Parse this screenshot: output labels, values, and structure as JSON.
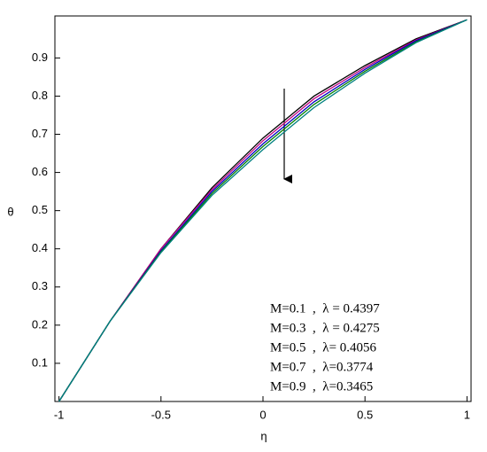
{
  "chart_data": {
    "type": "line",
    "xlabel": "η",
    "ylabel": "θ",
    "x": [
      -1,
      -0.75,
      -0.5,
      -0.25,
      0,
      0.25,
      0.5,
      0.75,
      1
    ],
    "series": [
      {
        "name": "M=0.1  ,  λ = 0.4397",
        "color": "#000000",
        "values": [
          0,
          0.21,
          0.4,
          0.56,
          0.69,
          0.8,
          0.88,
          0.95,
          1
        ]
      },
      {
        "name": "M=0.3  ,  λ = 0.4275",
        "color": "#c00080",
        "values": [
          0,
          0.21,
          0.4,
          0.555,
          0.683,
          0.793,
          0.875,
          0.947,
          1
        ]
      },
      {
        "name": "M=0.5  ,  λ= 0.4056",
        "color": "#0000c0",
        "values": [
          0,
          0.21,
          0.395,
          0.55,
          0.675,
          0.785,
          0.87,
          0.945,
          1
        ]
      },
      {
        "name": "M=0.7  ,  λ=0.3774",
        "color": "#008000",
        "values": [
          0,
          0.21,
          0.392,
          0.545,
          0.668,
          0.778,
          0.865,
          0.942,
          1
        ]
      },
      {
        "name": "M=0.9  ,  λ=0.3465",
        "color": "#008080",
        "values": [
          0,
          0.21,
          0.39,
          0.54,
          0.66,
          0.77,
          0.86,
          0.94,
          1
        ]
      }
    ],
    "xlim": [
      -1.02,
      1.02
    ],
    "ylim": [
      0,
      1.01
    ],
    "xticks": [
      -1,
      -0.5,
      0,
      0.5,
      1
    ],
    "yticks": [
      0.1,
      0.2,
      0.3,
      0.4,
      0.5,
      0.6,
      0.7,
      0.8,
      0.9
    ],
    "legend": "lower right"
  }
}
